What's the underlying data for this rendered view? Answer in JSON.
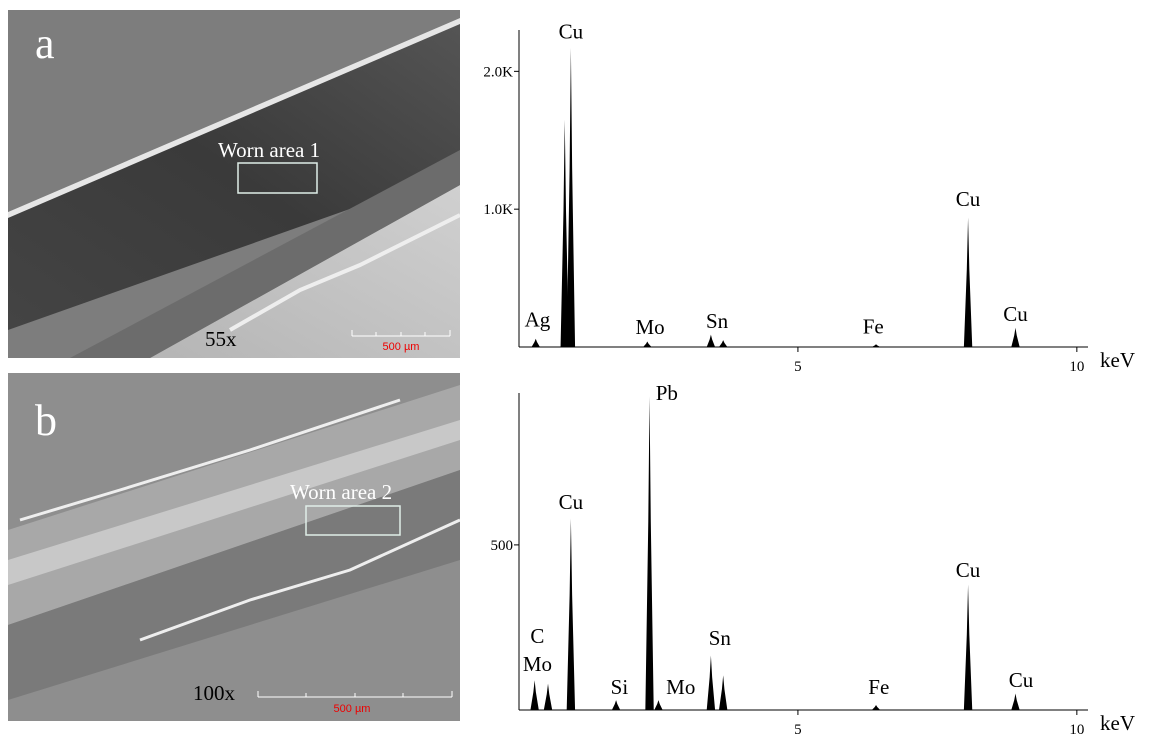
{
  "panels": [
    {
      "label": "a",
      "area": "Worn area 1",
      "magnification": "55x",
      "scale_bar": "500 µm"
    },
    {
      "label": "b",
      "area": "Worn area 2",
      "magnification": "100x",
      "scale_bar": "500 µm"
    }
  ],
  "chart_data": [
    {
      "type": "spectrum",
      "x_label": "keV",
      "xlim": [
        0,
        10.2
      ],
      "xticks": [
        5,
        10
      ],
      "ylim": [
        0,
        2300
      ],
      "yticks": [
        {
          "value": 1000,
          "label": "1.0K"
        },
        {
          "value": 2000,
          "label": "2.0K"
        }
      ],
      "color": "#000000",
      "peaks": {
        "x": [
          0.3,
          0.82,
          0.93,
          2.3,
          3.44,
          3.66,
          6.4,
          8.05,
          8.9
        ],
        "values": [
          60,
          1650,
          2170,
          40,
          90,
          50,
          20,
          940,
          140
        ]
      },
      "annotations": [
        {
          "text": "Ag",
          "x": 0.33,
          "y": 200
        },
        {
          "text": "Cu",
          "x": 0.93,
          "y": 2290
        },
        {
          "text": "Mo",
          "x": 2.35,
          "y": 146
        },
        {
          "text": "Sn",
          "x": 3.55,
          "y": 190
        },
        {
          "text": "Fe",
          "x": 6.35,
          "y": 150
        },
        {
          "text": "Cu",
          "x": 8.05,
          "y": 1073
        },
        {
          "text": "Cu",
          "x": 8.9,
          "y": 240
        }
      ]
    },
    {
      "type": "spectrum",
      "x_label": "keV",
      "xlim": [
        0,
        10.2
      ],
      "xticks": [
        5,
        10
      ],
      "ylim": [
        0,
        960
      ],
      "yticks": [
        500
      ],
      "color": "#000000",
      "peaks": {
        "x": [
          0.28,
          0.52,
          0.93,
          1.74,
          2.34,
          2.5,
          3.44,
          3.66,
          6.4,
          8.05,
          8.9
        ],
        "values": [
          90,
          80,
          580,
          30,
          950,
          30,
          165,
          105,
          15,
          380,
          50
        ]
      },
      "annotations": [
        {
          "text": "C",
          "x": 0.33,
          "y": 224
        },
        {
          "text": "Mo",
          "x": 0.33,
          "y": 139
        },
        {
          "text": "Cu",
          "x": 0.93,
          "y": 630
        },
        {
          "text": "Si",
          "x": 1.8,
          "y": 70
        },
        {
          "text": "Pb",
          "x": 2.65,
          "y": 960
        },
        {
          "text": "Mo",
          "x": 2.9,
          "y": 70
        },
        {
          "text": "Sn",
          "x": 3.6,
          "y": 218
        },
        {
          "text": "Fe",
          "x": 6.45,
          "y": 70
        },
        {
          "text": "Cu",
          "x": 8.05,
          "y": 424
        },
        {
          "text": "Cu",
          "x": 9.0,
          "y": 91
        }
      ]
    }
  ]
}
